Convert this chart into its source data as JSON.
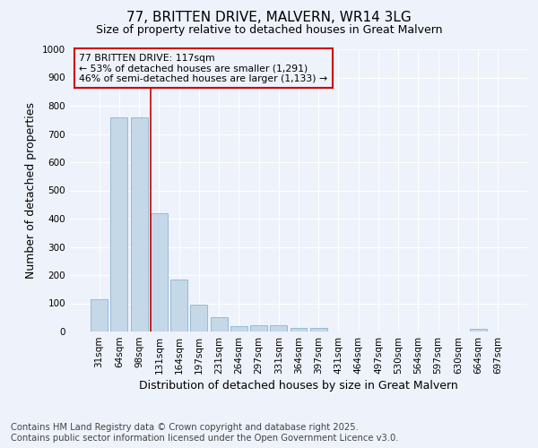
{
  "title": "77, BRITTEN DRIVE, MALVERN, WR14 3LG",
  "subtitle": "Size of property relative to detached houses in Great Malvern",
  "xlabel": "Distribution of detached houses by size in Great Malvern",
  "ylabel": "Number of detached properties",
  "categories": [
    "31sqm",
    "64sqm",
    "98sqm",
    "131sqm",
    "164sqm",
    "197sqm",
    "231sqm",
    "264sqm",
    "297sqm",
    "331sqm",
    "364sqm",
    "397sqm",
    "431sqm",
    "464sqm",
    "497sqm",
    "530sqm",
    "564sqm",
    "597sqm",
    "630sqm",
    "664sqm",
    "697sqm"
  ],
  "values": [
    115,
    760,
    760,
    420,
    185,
    95,
    50,
    20,
    22,
    22,
    12,
    12,
    0,
    0,
    0,
    0,
    0,
    0,
    0,
    8,
    0
  ],
  "bar_color": "#c5d8e8",
  "bar_edge_color": "#89b4d0",
  "bar_width": 0.85,
  "ylim": [
    0,
    1000
  ],
  "yticks": [
    0,
    100,
    200,
    300,
    400,
    500,
    600,
    700,
    800,
    900,
    1000
  ],
  "property_label": "77 BRITTEN DRIVE: 117sqm",
  "annotation_line1": "← 53% of detached houses are smaller (1,291)",
  "annotation_line2": "46% of semi-detached houses are larger (1,133) →",
  "annotation_box_color": "#cc0000",
  "vline_color": "#cc0000",
  "vline_x_index": 2.58,
  "bg_color": "#eef2fb",
  "grid_color": "#ffffff",
  "footer_line1": "Contains HM Land Registry data © Crown copyright and database right 2025.",
  "footer_line2": "Contains public sector information licensed under the Open Government Licence v3.0.",
  "title_fontsize": 11,
  "subtitle_fontsize": 9,
  "axis_label_fontsize": 9,
  "tick_fontsize": 7.5,
  "annotation_fontsize": 7.8,
  "footer_fontsize": 7.2
}
